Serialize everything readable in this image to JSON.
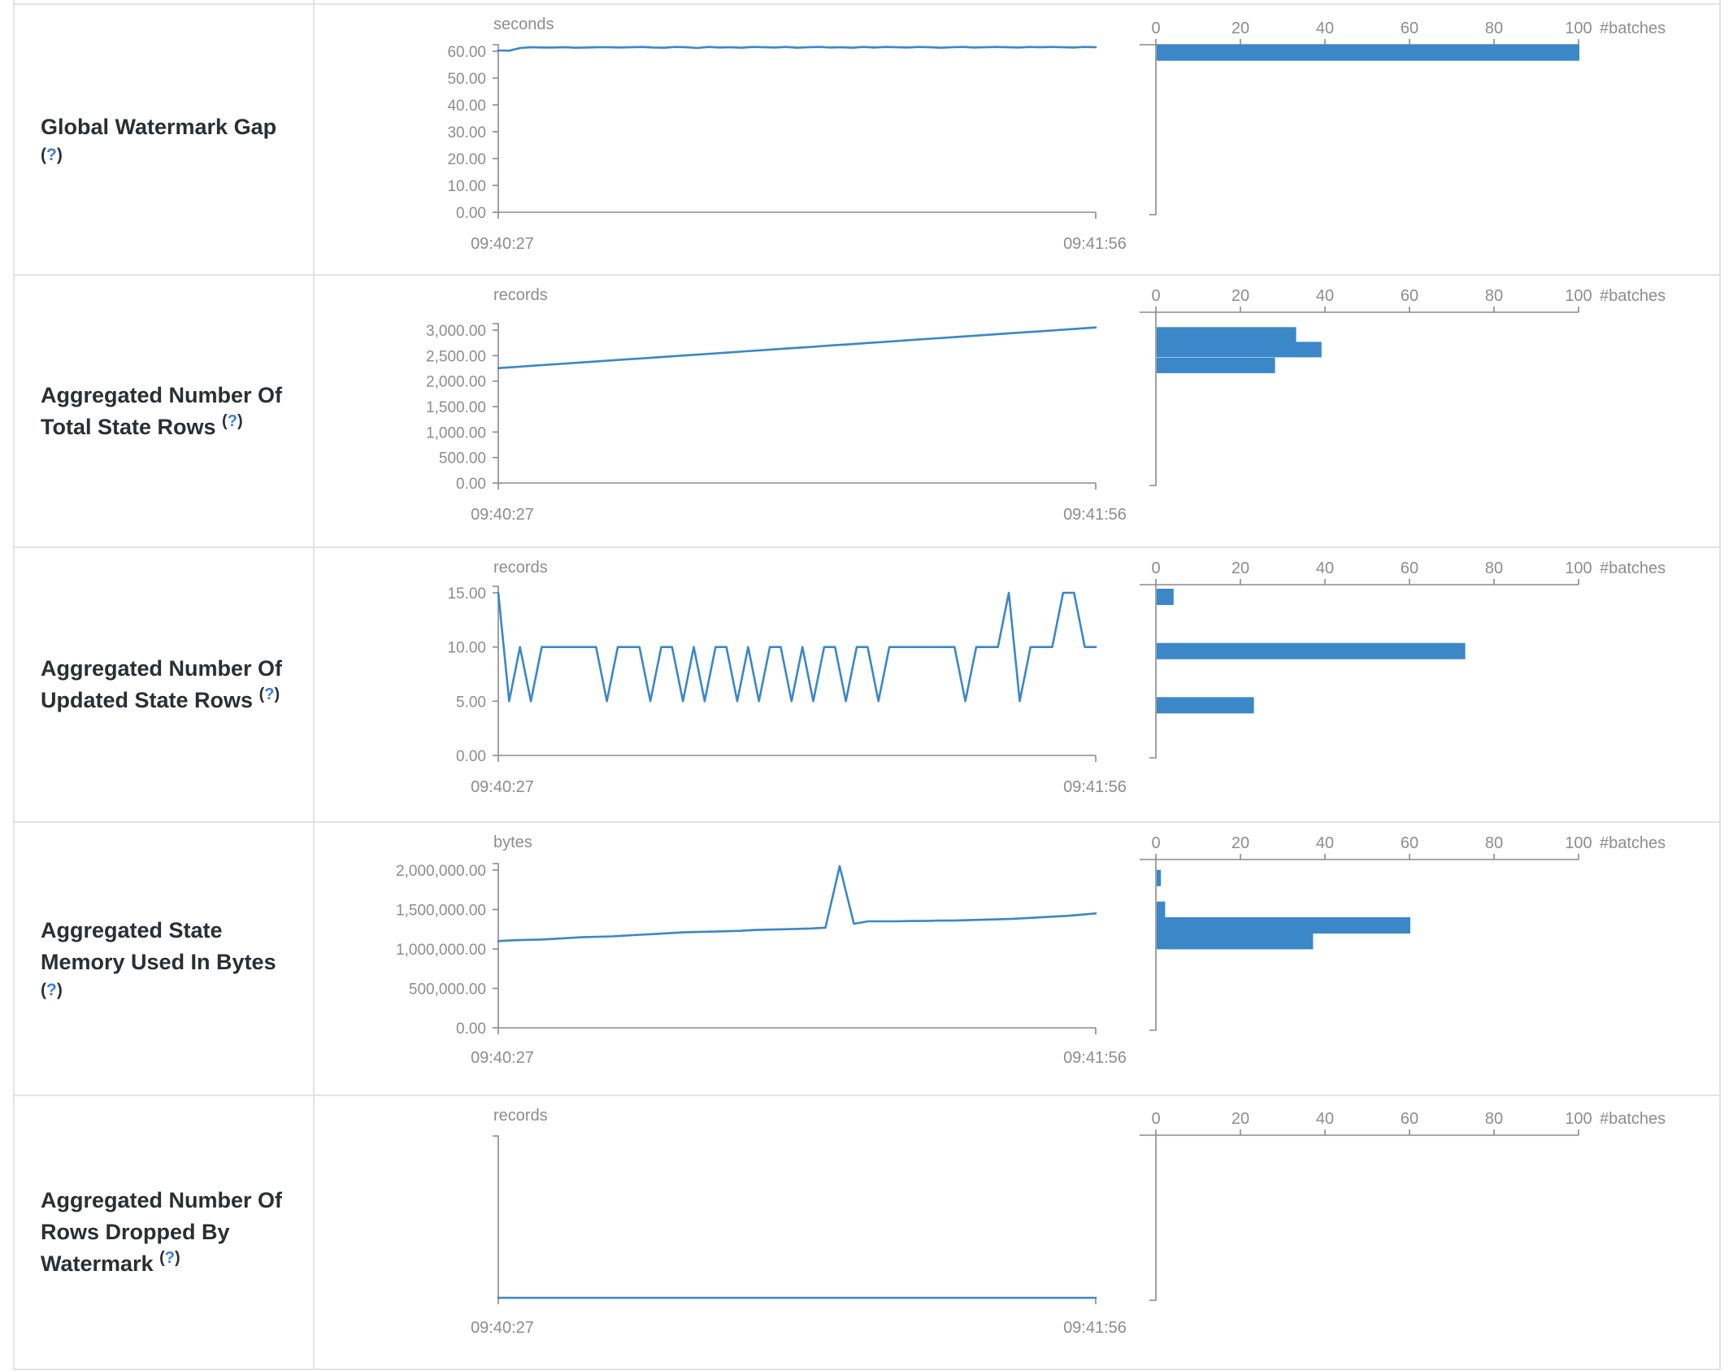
{
  "colors": {
    "series_blue": "#3b87c8",
    "bar_blue": "#3b87c8",
    "axis_gray": "#8a8a8a",
    "chart_text_gray": "#8d8d8d",
    "title_dark": "#2b2e33",
    "help_blue": "#3b7ddd",
    "border_gray": "#e1e3e8"
  },
  "shared": {
    "time_axis": {
      "start": "09:40:27",
      "end": "09:41:56"
    },
    "histogram_axis": {
      "tick_labels": [
        "0",
        "20",
        "40",
        "60",
        "80",
        "100"
      ],
      "tick_values": [
        0,
        20,
        40,
        60,
        80,
        100
      ],
      "label": "#batches",
      "xmax": 100
    }
  },
  "help": {
    "open": "(",
    "q": "?",
    "close": ")"
  },
  "chart_data": [
    {
      "title_lines": [
        "Global Watermark Gap"
      ],
      "help_inline": false,
      "timeline": {
        "type": "line",
        "unit": "seconds",
        "ylim": [
          0,
          60
        ],
        "yticks": [
          {
            "v": 60,
            "label": "60.00"
          },
          {
            "v": 50,
            "label": "50.00"
          },
          {
            "v": 40,
            "label": "40.00"
          },
          {
            "v": 30,
            "label": "30.00"
          },
          {
            "v": 20,
            "label": "20.00"
          },
          {
            "v": 10,
            "label": "10.00"
          },
          {
            "v": 0,
            "label": "0.00"
          }
        ],
        "x_start": "09:40:27",
        "x_end": "09:41:56",
        "values": [
          60.3,
          60.2,
          61.2,
          61.5,
          61.4,
          61.4,
          61.5,
          61.3,
          61.4,
          61.5,
          61.5,
          61.4,
          61.5,
          61.6,
          61.4,
          61.3,
          61.6,
          61.5,
          61.2,
          61.6,
          61.4,
          61.5,
          61.3,
          61.6,
          61.5,
          61.4,
          61.6,
          61.3,
          61.5,
          61.6,
          61.4,
          61.5,
          61.3,
          61.6,
          61.4,
          61.6,
          61.5,
          61.4,
          61.6,
          61.5,
          61.3,
          61.5,
          61.6,
          61.4,
          61.5,
          61.6,
          61.5,
          61.4,
          61.6,
          61.5,
          61.6,
          61.5,
          61.4,
          61.6,
          61.5
        ]
      },
      "histogram": {
        "type": "bar",
        "xlabel": "#batches",
        "xmax": 100,
        "bins": [
          {
            "value": 61,
            "count": 100
          }
        ]
      }
    },
    {
      "title_lines": [
        "Aggregated Number Of",
        "Total State Rows"
      ],
      "help_inline": true,
      "timeline": {
        "type": "line",
        "unit": "records",
        "ylim": [
          0,
          3000
        ],
        "yticks": [
          {
            "v": 3000,
            "label": "3,000.00"
          },
          {
            "v": 2500,
            "label": "2,500.00"
          },
          {
            "v": 2000,
            "label": "2,000.00"
          },
          {
            "v": 1500,
            "label": "1,500.00"
          },
          {
            "v": 1000,
            "label": "1,000.00"
          },
          {
            "v": 500,
            "label": "500.00"
          },
          {
            "v": 0,
            "label": "0.00"
          }
        ],
        "x_start": "09:40:27",
        "x_end": "09:41:56",
        "values": [
          2255,
          2282,
          2310,
          2337,
          2365,
          2392,
          2420,
          2447,
          2475,
          2502,
          2530,
          2557,
          2585,
          2612,
          2640,
          2667,
          2695,
          2722,
          2750,
          2777,
          2805,
          2832,
          2860,
          2887,
          2915,
          2942,
          2970,
          2997,
          3025,
          3053
        ]
      },
      "histogram": {
        "type": "bar",
        "xlabel": "#batches",
        "xmax": 100,
        "bins": [
          {
            "value": 2980,
            "count": 33
          },
          {
            "value": 2690,
            "count": 39
          },
          {
            "value": 2380,
            "count": 28
          }
        ]
      }
    },
    {
      "title_lines": [
        "Aggregated Number Of",
        "Updated State Rows"
      ],
      "help_inline": true,
      "timeline": {
        "type": "line",
        "unit": "records",
        "ylim": [
          0,
          15
        ],
        "yticks": [
          {
            "v": 15,
            "label": "15.00"
          },
          {
            "v": 10,
            "label": "10.00"
          },
          {
            "v": 5,
            "label": "5.00"
          },
          {
            "v": 0,
            "label": "0.00"
          }
        ],
        "x_start": "09:40:27",
        "x_end": "09:41:56",
        "values": [
          15,
          5,
          10,
          5,
          10,
          10,
          10,
          10,
          10,
          10,
          5,
          10,
          10,
          10,
          5,
          10,
          10,
          5,
          10,
          5,
          10,
          10,
          5,
          10,
          5,
          10,
          10,
          5,
          10,
          5,
          10,
          10,
          5,
          10,
          10,
          5,
          10,
          10,
          10,
          10,
          10,
          10,
          10,
          5,
          10,
          10,
          10,
          15,
          5,
          10,
          10,
          10,
          15,
          15,
          10,
          10
        ]
      },
      "histogram": {
        "type": "bar",
        "xlabel": "#batches",
        "xmax": 100,
        "bins": [
          {
            "value": 15,
            "count": 4
          },
          {
            "value": 10,
            "count": 73
          },
          {
            "value": 5,
            "count": 23
          }
        ]
      }
    },
    {
      "title_lines": [
        "Aggregated State",
        "Memory Used In Bytes"
      ],
      "help_inline": false,
      "timeline": {
        "type": "line",
        "unit": "bytes",
        "ylim": [
          0,
          2000000
        ],
        "yticks": [
          {
            "v": 2000000,
            "label": "2,000,000.00"
          },
          {
            "v": 1500000,
            "label": "1,500,000.00"
          },
          {
            "v": 1000000,
            "label": "1,000,000.00"
          },
          {
            "v": 500000,
            "label": "500,000.00"
          },
          {
            "v": 0,
            "label": "0.00"
          }
        ],
        "x_start": "09:40:27",
        "x_end": "09:41:56",
        "values": [
          1100000,
          1110000,
          1115000,
          1120000,
          1130000,
          1140000,
          1150000,
          1155000,
          1160000,
          1170000,
          1180000,
          1190000,
          1200000,
          1210000,
          1215000,
          1220000,
          1225000,
          1230000,
          1240000,
          1245000,
          1250000,
          1255000,
          1260000,
          1270000,
          2050000,
          1320000,
          1350000,
          1350000,
          1350000,
          1355000,
          1355000,
          1360000,
          1360000,
          1365000,
          1370000,
          1375000,
          1380000,
          1390000,
          1400000,
          1410000,
          1420000,
          1435000,
          1450000
        ]
      },
      "histogram": {
        "type": "bar",
        "xlabel": "#batches",
        "xmax": 100,
        "bins": [
          {
            "value": 1950000,
            "count": 1
          },
          {
            "value": 1550000,
            "count": 2
          },
          {
            "value": 1350000,
            "count": 60
          },
          {
            "value": 1150000,
            "count": 37
          }
        ]
      }
    },
    {
      "title_lines": [
        "Aggregated Number Of",
        "Rows Dropped By",
        "Watermark"
      ],
      "help_inline": true,
      "timeline": {
        "type": "line",
        "unit": "records",
        "ylim": [
          0,
          1
        ],
        "yticks": [],
        "x_start": "09:40:27",
        "x_end": "09:41:56",
        "values": [
          0,
          0,
          0,
          0,
          0,
          0,
          0,
          0,
          0,
          0,
          0,
          0
        ]
      },
      "histogram": {
        "type": "bar",
        "xlabel": "#batches",
        "xmax": 100,
        "bins": []
      }
    }
  ]
}
